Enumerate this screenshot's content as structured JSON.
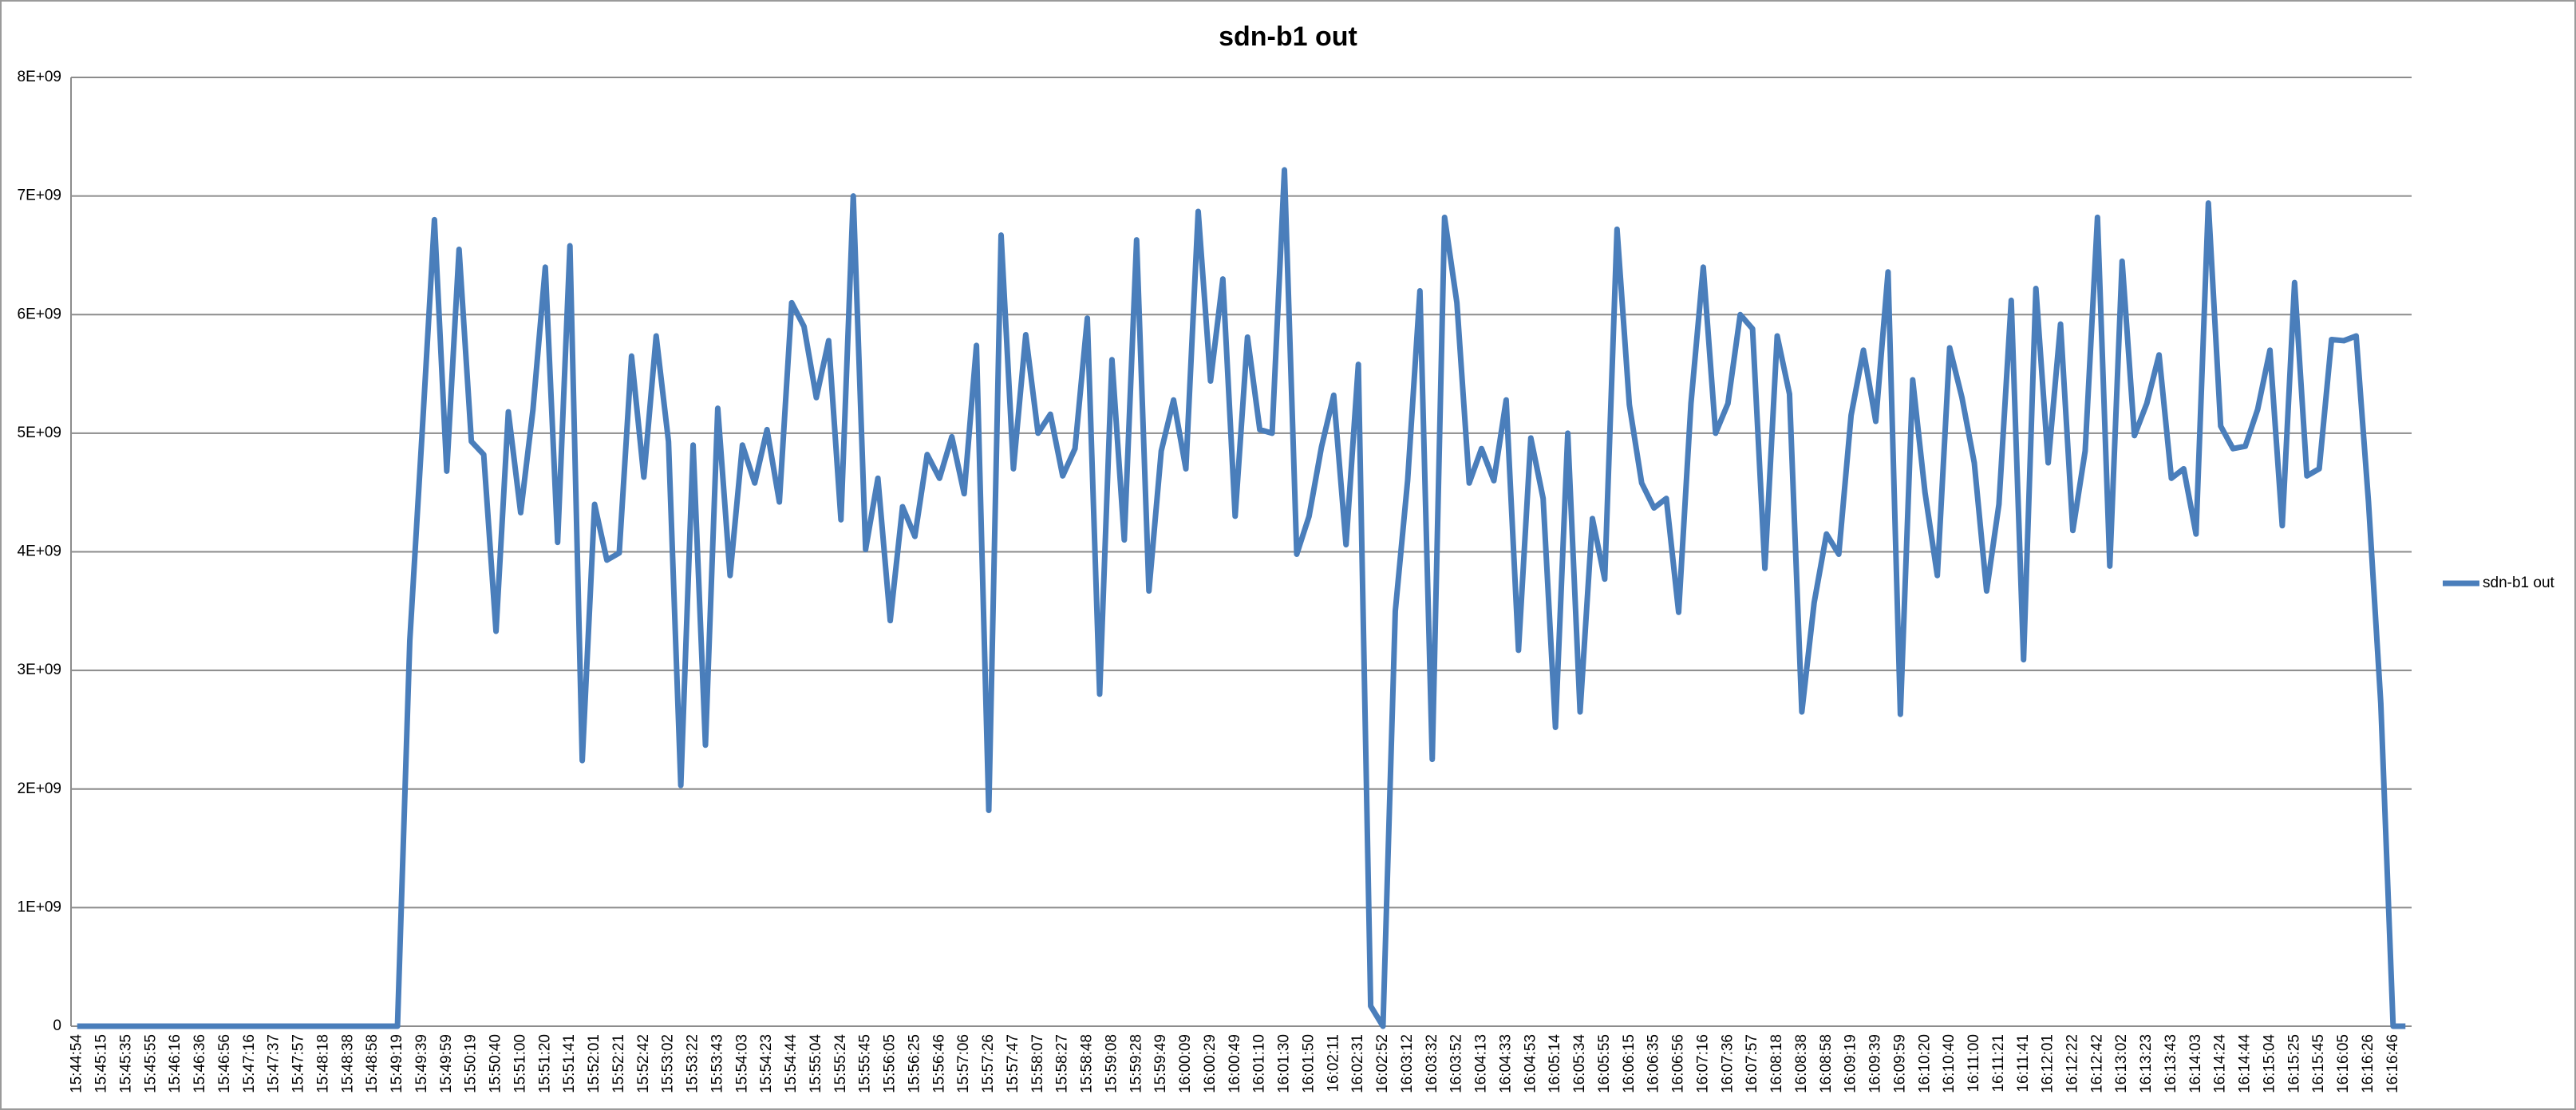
{
  "chart_data": {
    "type": "line",
    "title": "sdn-b1 out",
    "categories": [
      "15:44:54",
      null,
      "15:45:15",
      null,
      "15:45:35",
      null,
      "15:45:55",
      null,
      "15:46:16",
      null,
      "15:46:36",
      null,
      "15:46:56",
      null,
      "15:47:16",
      null,
      "15:47:37",
      null,
      "15:47:57",
      null,
      "15:48:18",
      null,
      "15:48:38",
      null,
      "15:48:58",
      null,
      "15:49:19",
      null,
      "15:49:39",
      null,
      "15:49:59",
      null,
      "15:50:19",
      null,
      "15:50:40",
      null,
      "15:51:00",
      null,
      "15:51:20",
      null,
      "15:51:41",
      null,
      "15:52:01",
      null,
      "15:52:21",
      null,
      "15:52:42",
      null,
      "15:53:02",
      null,
      "15:53:22",
      null,
      "15:53:43",
      null,
      "15:54:03",
      null,
      "15:54:23",
      null,
      "15:54:44",
      null,
      "15:55:04",
      null,
      "15:55:24",
      null,
      "15:55:45",
      null,
      "15:56:05",
      null,
      "15:56:25",
      null,
      "15:56:46",
      null,
      "15:57:06",
      null,
      "15:57:26",
      null,
      "15:57:47",
      null,
      "15:58:07",
      null,
      "15:58:27",
      null,
      "15:58:48",
      null,
      "15:59:08",
      null,
      "15:59:28",
      null,
      "15:59:49",
      null,
      "16:00:09",
      null,
      "16:00:29",
      null,
      "16:00:49",
      null,
      "16:01:10",
      null,
      "16:01:30",
      null,
      "16:01:50",
      null,
      "16:02:11",
      null,
      "16:02:31",
      null,
      "16:02:52",
      null,
      "16:03:12",
      null,
      "16:03:32",
      null,
      "16:03:52",
      null,
      "16:04:13",
      null,
      "16:04:33",
      null,
      "16:04:53",
      null,
      "16:05:14",
      null,
      "16:05:34",
      null,
      "16:05:55",
      null,
      "16:06:15",
      null,
      "16:06:35",
      null,
      "16:06:56",
      null,
      "16:07:16",
      null,
      "16:07:36",
      null,
      "16:07:57",
      null,
      "16:08:18",
      null,
      "16:08:38",
      null,
      "16:08:58",
      null,
      "16:09:19",
      null,
      "16:09:39",
      null,
      "16:09:59",
      null,
      "16:10:20",
      null,
      "16:10:40",
      null,
      "16:11:00",
      null,
      "16:11:21",
      null,
      "16:11:41",
      null,
      "16:12:01",
      null,
      "16:12:22",
      null,
      "16:12:42",
      null,
      "16:13:02",
      null,
      "16:13:23",
      null,
      "16:13:43",
      null,
      "16:14:03",
      null,
      "16:14:24",
      null,
      "16:14:44",
      null,
      "16:15:04",
      null,
      "16:15:25",
      null,
      "16:15:45",
      null,
      "16:16:05",
      null,
      "16:16:26",
      null,
      "16:16:46",
      null
    ],
    "series": [
      {
        "name": "sdn-b1 out",
        "color": "#4a7ebb",
        "values": [
          0,
          0,
          0,
          0,
          0,
          0,
          0,
          0,
          0,
          0,
          0,
          0,
          0,
          0,
          0,
          0,
          0,
          0,
          0,
          0,
          0,
          0,
          0,
          0,
          0,
          0,
          0,
          3250000000.0,
          5000000000.0,
          6800000000.0,
          4680000000.0,
          6550000000.0,
          4930000000.0,
          4820000000.0,
          3330000000.0,
          5180000000.0,
          4330000000.0,
          5200000000.0,
          6400000000.0,
          4080000000.0,
          6580000000.0,
          2240000000.0,
          4400000000.0,
          3930000000.0,
          3990000000.0,
          5650000000.0,
          4630000000.0,
          5820000000.0,
          4930000000.0,
          2030000000.0,
          4900000000.0,
          2370000000.0,
          5210000000.0,
          3800000000.0,
          4900000000.0,
          4580000000.0,
          5030000000.0,
          4420000000.0,
          6100000000.0,
          5900000000.0,
          5300000000.0,
          5780000000.0,
          4270000000.0,
          7000000000.0,
          4020000000.0,
          4620000000.0,
          3420000000.0,
          4380000000.0,
          4130000000.0,
          4820000000.0,
          4620000000.0,
          4970000000.0,
          4490000000.0,
          5740000000.0,
          1820000000.0,
          6670000000.0,
          4700000000.0,
          5830000000.0,
          5000000000.0,
          5160000000.0,
          4640000000.0,
          4870000000.0,
          5970000000.0,
          2800000000.0,
          5620000000.0,
          4100000000.0,
          6630000000.0,
          3670000000.0,
          4850000000.0,
          5280000000.0,
          4700000000.0,
          6870000000.0,
          5440000000.0,
          6300000000.0,
          4300000000.0,
          5810000000.0,
          5030000000.0,
          5000000000.0,
          7220000000.0,
          3980000000.0,
          4300000000.0,
          4880000000.0,
          5320000000.0,
          4060000000.0,
          5580000000.0,
          170000000.0,
          0,
          3500000000.0,
          4600000000.0,
          6200000000.0,
          2250000000.0,
          6820000000.0,
          6100000000.0,
          4580000000.0,
          4870000000.0,
          4600000000.0,
          5280000000.0,
          3170000000.0,
          4960000000.0,
          4450000000.0,
          2520000000.0,
          5000000000.0,
          2650000000.0,
          4280000000.0,
          3770000000.0,
          6720000000.0,
          5240000000.0,
          4580000000.0,
          4370000000.0,
          4450000000.0,
          3490000000.0,
          5250000000.0,
          6400000000.0,
          5000000000.0,
          5250000000.0,
          6000000000.0,
          5880000000.0,
          3860000000.0,
          5820000000.0,
          5330000000.0,
          2650000000.0,
          3570000000.0,
          4150000000.0,
          3980000000.0,
          5150000000.0,
          5700000000.0,
          5100000000.0,
          6360000000.0,
          2630000000.0,
          5450000000.0,
          4500000000.0,
          3800000000.0,
          5720000000.0,
          5300000000.0,
          4750000000.0,
          3670000000.0,
          4400000000.0,
          6120000000.0,
          3090000000.0,
          6220000000.0,
          4750000000.0,
          5920000000.0,
          4180000000.0,
          4850000000.0,
          6820000000.0,
          3880000000.0,
          6450000000.0,
          4980000000.0,
          5250000000.0,
          5660000000.0,
          4620000000.0,
          4700000000.0,
          4150000000.0,
          6940000000.0,
          5060000000.0,
          4870000000.0,
          4890000000.0,
          5200000000.0,
          5700000000.0,
          4220000000.0,
          6270000000.0,
          4640000000.0,
          4700000000.0,
          5790000000.0,
          5780000000.0,
          5820000000.0,
          4420000000.0,
          2720000000.0,
          0,
          0
        ]
      }
    ],
    "ylim": [
      0,
      8000000000.0
    ],
    "yticks": [
      0,
      {
        "value": 1000000000.0,
        "label": "1E+09"
      },
      {
        "value": 2000000000.0,
        "label": "2E+09"
      },
      {
        "value": 3000000000.0,
        "label": "3E+09"
      },
      {
        "value": 4000000000.0,
        "label": "4E+09"
      },
      {
        "value": 5000000000.0,
        "label": "5E+09"
      },
      {
        "value": 6000000000.0,
        "label": "6E+09"
      },
      {
        "value": 7000000000.0,
        "label": "7E+09"
      },
      {
        "value": 8000000000.0,
        "label": "8E+09"
      }
    ],
    "grid": true,
    "legend": "right"
  }
}
